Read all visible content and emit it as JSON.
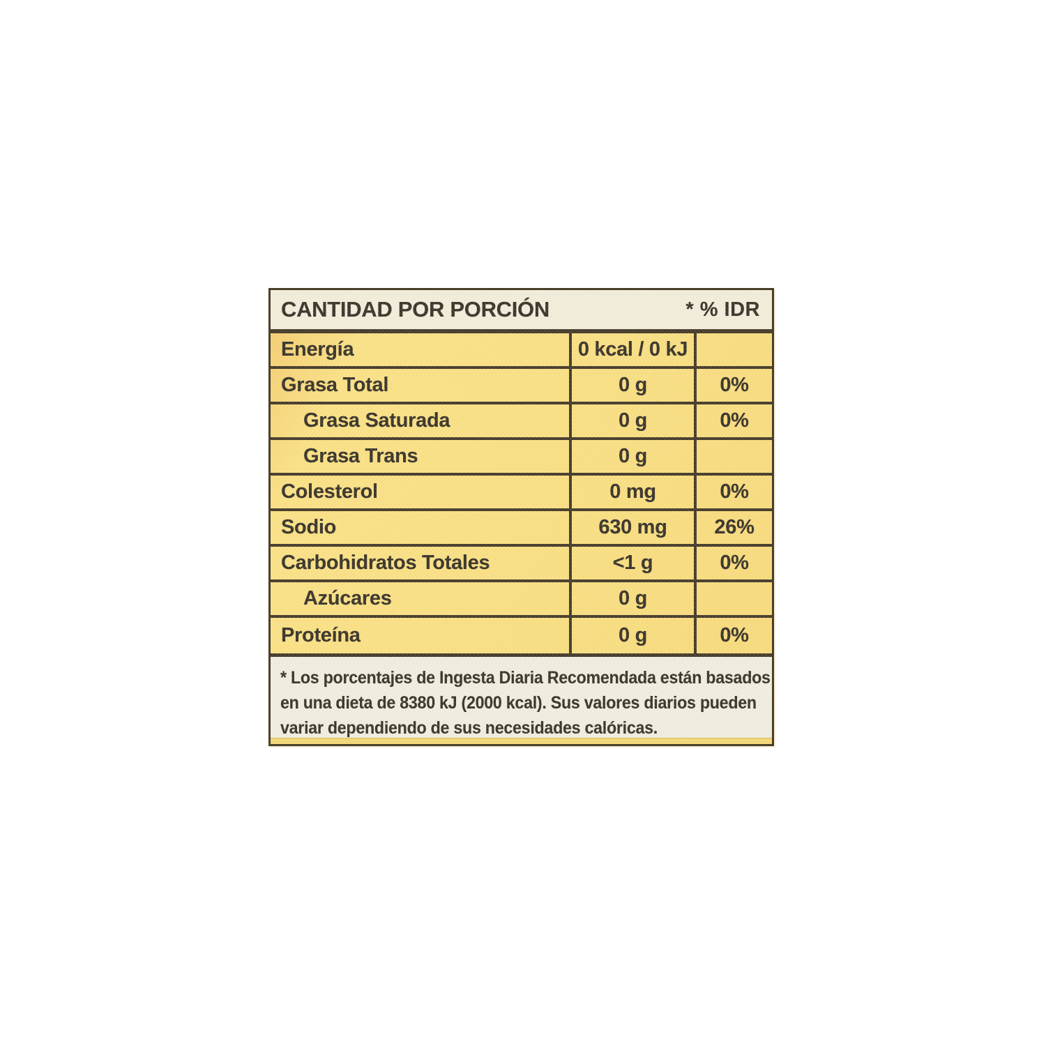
{
  "header": {
    "title": "CANTIDAD POR PORCIÓN",
    "idr_label": "* % IDR"
  },
  "table": {
    "rows": [
      {
        "label": "Energía",
        "value": "0 kcal / 0 kJ",
        "pct": ""
      },
      {
        "label": "Grasa Total",
        "value": "0 g",
        "pct": "0%"
      },
      {
        "label": "Grasa Saturada",
        "value": "0 g",
        "pct": "0%"
      },
      {
        "label": "Grasa Trans",
        "value": "0 g",
        "pct": ""
      },
      {
        "label": "Colesterol",
        "value": "0 mg",
        "pct": "0%"
      },
      {
        "label": "Sodio",
        "value": "630 mg",
        "pct": "26%"
      },
      {
        "label": "Carbohidratos Totales",
        "value": "<1 g",
        "pct": "0%"
      },
      {
        "label": "Azúcares",
        "value": "0 g",
        "pct": ""
      },
      {
        "label": "Proteína",
        "value": "0 g",
        "pct": "0%"
      }
    ]
  },
  "footnote": {
    "lines": [
      "* Los porcentajes de Ingesta Diaria Recomendada están basados",
      "en una dieta de 8380 kJ (2000 kcal). Sus valores diarios pueden",
      "variar dependiendo de sus necesidades calóricas."
    ]
  },
  "colors": {
    "yellow": "#f9e084",
    "cream": "#f1eedd",
    "cream-foot": "#f0eee3",
    "line": "#42392a",
    "text": "#36322a",
    "strip": "#f3d878"
  }
}
